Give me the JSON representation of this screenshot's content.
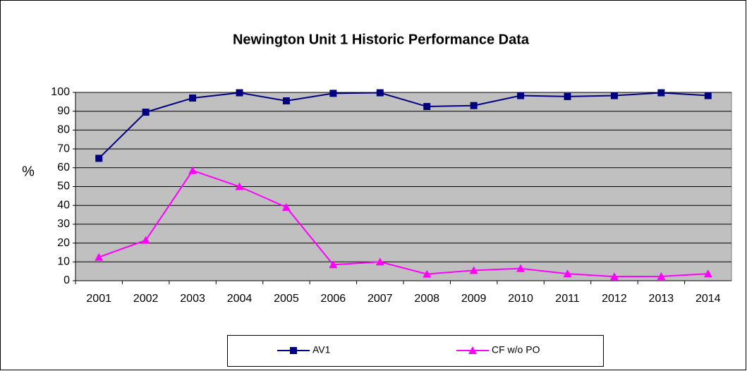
{
  "chart_data": {
    "type": "line",
    "title": "Newington Unit 1 Historic Performance Data",
    "y_label": "%",
    "categories": [
      "2001",
      "2002",
      "2003",
      "2004",
      "2005",
      "2006",
      "2007",
      "2008",
      "2009",
      "2010",
      "2011",
      "2012",
      "2013",
      "2014"
    ],
    "series": [
      {
        "name": "AV1",
        "color": "#000080",
        "marker": "square",
        "values": [
          65,
          89.5,
          97,
          99.8,
          95.5,
          99.5,
          99.8,
          92.5,
          93,
          98.3,
          97.8,
          98.3,
          99.8,
          98.3
        ]
      },
      {
        "name": "CF w/o PO",
        "color": "#ff00ff",
        "marker": "triangle",
        "values": [
          12.5,
          21.5,
          58.5,
          50,
          39,
          8.5,
          10,
          3.5,
          5.5,
          6.5,
          3.7,
          2.2,
          2.3,
          3.7
        ]
      }
    ],
    "ylim": [
      0,
      100
    ],
    "yticks": [
      0,
      10,
      20,
      30,
      40,
      50,
      60,
      70,
      80,
      90,
      100
    ],
    "grid": true,
    "legend": "bottom"
  }
}
